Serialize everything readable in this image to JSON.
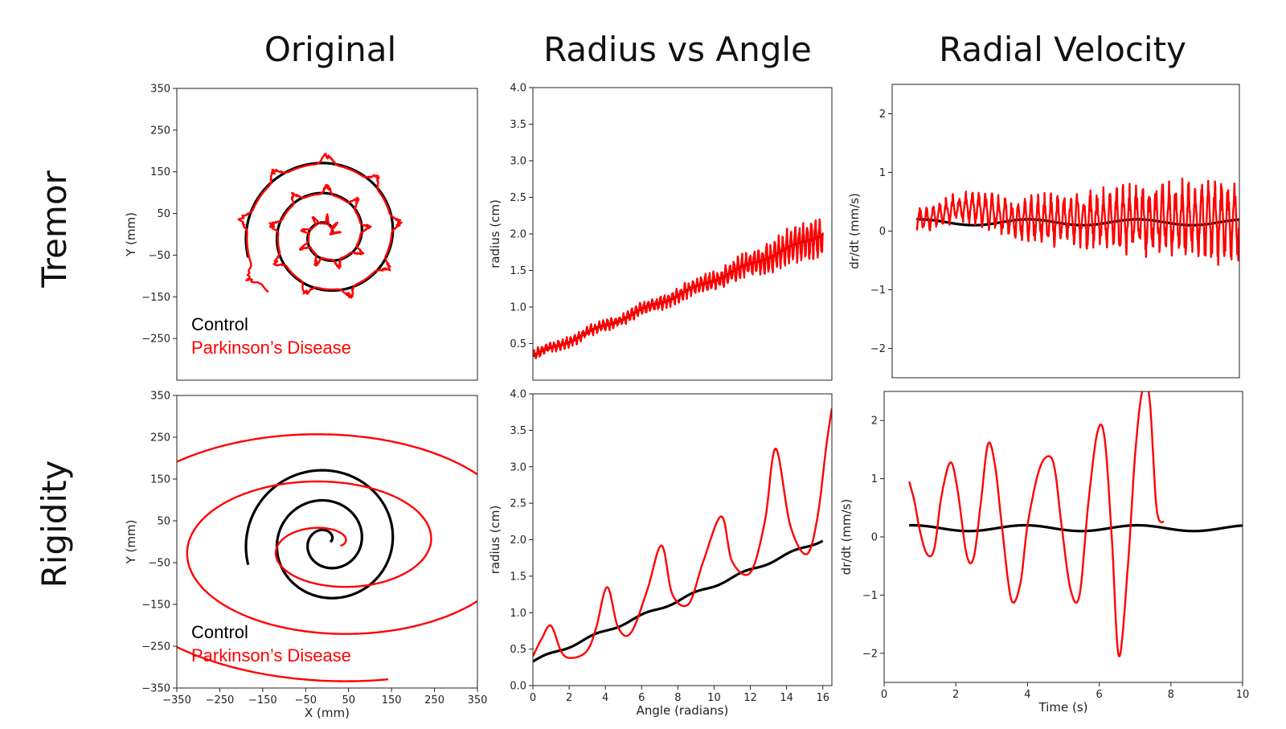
{
  "figure": {
    "column_titles": [
      "Original",
      "Radius vs Angle",
      "Radial Velocity"
    ],
    "row_titles": [
      "Tremor",
      "Rigidity"
    ],
    "colors": {
      "control": "#000000",
      "pd": "#ff0000"
    }
  },
  "chart_data": [
    {
      "id": "tremor-original",
      "type": "line",
      "row": 0,
      "col": 0,
      "xlabel": "",
      "ylabel": "Y (mm)",
      "xlim": [
        -350,
        350
      ],
      "ylim": [
        -350,
        350
      ],
      "xticks": [],
      "yticks": [
        350,
        250,
        150,
        50,
        -50,
        -150,
        -250
      ],
      "legend": {
        "position": "bottom-left",
        "entries": [
          "Control",
          "Parkinson’s Disease"
        ]
      },
      "series": [
        {
          "name": "Control",
          "kind": "spiral",
          "cx": 0,
          "cy": 0,
          "a": 8,
          "b": 11.5,
          "theta_max": 16.0,
          "phase": 0,
          "amp": 0,
          "freq": 0
        },
        {
          "name": "Parkinson’s Disease",
          "kind": "spiral",
          "cx": 0,
          "cy": 0,
          "a": 10,
          "b": 11.5,
          "theta_max": 16.5,
          "phase": 0,
          "amp": 22,
          "freq": 9
        }
      ]
    },
    {
      "id": "tremor-radius",
      "type": "line",
      "row": 0,
      "col": 1,
      "xlabel": "",
      "ylabel": "radius (cm)",
      "xlim": [
        0,
        16.5
      ],
      "ylim": [
        0,
        4.0
      ],
      "xticks": [],
      "yticks": [
        0.5,
        1.0,
        1.5,
        2.0,
        2.5,
        3.0,
        3.5,
        4.0
      ],
      "series": [
        {
          "name": "Control",
          "kind": "radius",
          "x0": 0,
          "x1": 16,
          "y0": 0.33,
          "y1": 2.0,
          "amp": 0,
          "freq": 0,
          "amp_growth": 0
        },
        {
          "name": "Parkinson’s Disease",
          "kind": "radius",
          "x0": 0,
          "x1": 16,
          "y0": 0.33,
          "y1": 2.0,
          "amp": 0.06,
          "freq": 9,
          "amp_growth": 0.2
        }
      ]
    },
    {
      "id": "tremor-velocity",
      "type": "line",
      "row": 0,
      "col": 2,
      "xlabel": "",
      "ylabel": "dr/dt (mm/s)",
      "xlim": [
        0,
        10
      ],
      "ylim": [
        -2.5,
        2.5
      ],
      "xticks": [],
      "yticks": [
        2,
        1,
        0,
        -1,
        -2
      ],
      "series": [
        {
          "name": "Control",
          "kind": "velocity",
          "x0": 0.7,
          "x1": 10,
          "base": 0.15,
          "amp": 0.05,
          "freq": 1.0,
          "amp_growth": 0
        },
        {
          "name": "Parkinson’s Disease",
          "kind": "velocity",
          "x0": 0.7,
          "x1": 10,
          "base": 0.2,
          "amp": 0.15,
          "freq": 9,
          "amp_growth": 0.5
        }
      ]
    },
    {
      "id": "rigidity-original",
      "type": "line",
      "row": 1,
      "col": 0,
      "xlabel": "X (mm)",
      "ylabel": "Y (mm)",
      "xlim": [
        -350,
        350
      ],
      "ylim": [
        -350,
        350
      ],
      "xticks": [
        -350,
        -250,
        -150,
        -50,
        50,
        150,
        250,
        350
      ],
      "yticks": [
        350,
        250,
        150,
        50,
        -50,
        -150,
        -250,
        -350
      ],
      "legend": {
        "position": "bottom-left",
        "entries": [
          "Control",
          "Parkinson’s Disease"
        ]
      },
      "series": [
        {
          "name": "Control",
          "kind": "spiral",
          "cx": 0,
          "cy": 0,
          "a": 8,
          "b": 11.5,
          "theta_max": 16.0,
          "phase": 0,
          "amp": 0,
          "freq": 0
        },
        {
          "name": "Parkinson’s Disease",
          "kind": "ellipse-spiral",
          "cx": 10,
          "cy": -10,
          "a": 12,
          "b": 19,
          "theta_max": 17.5,
          "phase": 0,
          "sx": 1.75,
          "sy": 0.95
        }
      ]
    },
    {
      "id": "rigidity-radius",
      "type": "line",
      "row": 1,
      "col": 1,
      "xlabel": "Angle (radians)",
      "ylabel": "radius (cm)",
      "xlim": [
        0,
        16.5
      ],
      "ylim": [
        0.0,
        4.0
      ],
      "xticks": [
        0,
        2,
        4,
        6,
        8,
        10,
        12,
        14,
        16
      ],
      "yticks": [
        0.0,
        0.5,
        1.0,
        1.5,
        2.0,
        2.5,
        3.0,
        3.5,
        4.0
      ],
      "series": [
        {
          "name": "Control",
          "kind": "radius",
          "x0": 0,
          "x1": 16,
          "y0": 0.33,
          "y1": 2.0,
          "amp": 0,
          "freq": 0,
          "amp_growth": 0
        },
        {
          "name": "Parkinson’s Disease",
          "kind": "points",
          "x": [
            0,
            0.5,
            1.0,
            1.6,
            2.2,
            3.0,
            3.5,
            4.1,
            4.7,
            5.4,
            6.3,
            7.1,
            7.7,
            8.6,
            9.4,
            10.4,
            11.0,
            12.0,
            12.8,
            13.4,
            14.2,
            15.1,
            15.7,
            16.2,
            16.5
          ],
          "y": [
            0.4,
            0.65,
            0.82,
            0.45,
            0.38,
            0.48,
            0.8,
            1.35,
            0.8,
            0.72,
            1.3,
            1.92,
            1.25,
            1.12,
            1.7,
            2.32,
            1.7,
            1.55,
            2.25,
            3.25,
            2.2,
            1.8,
            2.3,
            3.3,
            3.8
          ]
        }
      ]
    },
    {
      "id": "rigidity-velocity",
      "type": "line",
      "row": 1,
      "col": 2,
      "xlabel": "Time (s)",
      "ylabel": "dr/dt (mm/s)",
      "xlim": [
        0,
        10
      ],
      "ylim": [
        -2.5,
        2.5
      ],
      "xticks": [
        0,
        2,
        4,
        6,
        8,
        10
      ],
      "yticks": [
        2,
        1,
        0,
        -1,
        -2
      ],
      "series": [
        {
          "name": "Control",
          "kind": "velocity",
          "x0": 0.7,
          "x1": 10,
          "base": 0.15,
          "amp": 0.05,
          "freq": 1.0,
          "amp_growth": 0
        },
        {
          "name": "Parkinson’s Disease",
          "kind": "points",
          "x": [
            0.7,
            0.85,
            1.0,
            1.2,
            1.4,
            1.6,
            1.85,
            2.05,
            2.3,
            2.5,
            2.7,
            2.9,
            3.1,
            3.3,
            3.55,
            3.8,
            4.0,
            4.3,
            4.55,
            4.75,
            4.95,
            5.2,
            5.45,
            5.7,
            5.95,
            6.15,
            6.35,
            6.55,
            6.8,
            7.0,
            7.2,
            7.4,
            7.6,
            7.8
          ],
          "y": [
            0.95,
            0.6,
            0.1,
            -0.3,
            -0.2,
            0.7,
            1.28,
            0.8,
            -0.3,
            -0.35,
            0.6,
            1.6,
            1.2,
            0.1,
            -1.08,
            -0.8,
            0.2,
            1.1,
            1.38,
            1.2,
            0.2,
            -0.9,
            -1.0,
            0.6,
            1.8,
            1.7,
            0.0,
            -2.05,
            -0.5,
            1.4,
            2.5,
            2.4,
            0.5,
            0.25
          ]
        }
      ]
    }
  ]
}
